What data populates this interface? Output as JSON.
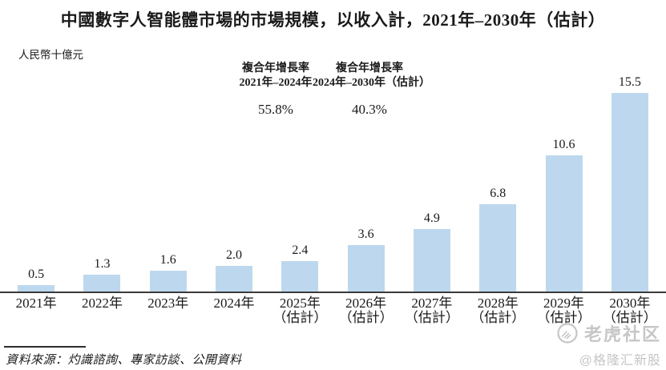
{
  "title": "中國數字人智能體市場的市場規模，以收入計，2021年–2030年（估計）",
  "unit_label": "人民幣十億元",
  "cagr_annotations": [
    {
      "line1": "複合年增長率",
      "line2": "2021年–2024年",
      "value": "55.8%"
    },
    {
      "line1": "複合年增長率",
      "line2": "2024年–2030年（估計）",
      "value": "40.3%"
    }
  ],
  "chart_data": {
    "type": "bar",
    "title": "中國數字人智能體市場的市場規模，以收入計，2021年–2030年（估計）",
    "ylabel": "人民幣十億元",
    "xlabel": "",
    "categories": [
      "2021年",
      "2022年",
      "2023年",
      "2024年",
      "2025年（估計）",
      "2026年（估計）",
      "2027年（估計）",
      "2028年（估計）",
      "2029年（估計）",
      "2030年（估計）"
    ],
    "tick_labels": [
      {
        "line1": "2021年",
        "line2": ""
      },
      {
        "line1": "2022年",
        "line2": ""
      },
      {
        "line1": "2023年",
        "line2": ""
      },
      {
        "line1": "2024年",
        "line2": ""
      },
      {
        "line1": "2025年",
        "line2": "（估計）"
      },
      {
        "line1": "2026年",
        "line2": "（估計）"
      },
      {
        "line1": "2027年",
        "line2": "（估計）"
      },
      {
        "line1": "2028年",
        "line2": "（估計）"
      },
      {
        "line1": "2029年",
        "line2": "（估計）"
      },
      {
        "line1": "2030年",
        "line2": "（估計）"
      }
    ],
    "values": [
      0.5,
      1.3,
      1.6,
      2.0,
      2.4,
      3.6,
      4.9,
      6.8,
      10.6,
      15.5
    ],
    "value_labels": [
      "0.5",
      "1.3",
      "1.6",
      "2.0",
      "2.4",
      "3.6",
      "4.9",
      "6.8",
      "10.6",
      "15.5"
    ],
    "bar_color": "#BDD8EE",
    "ylim": [
      0,
      16
    ],
    "grid": false,
    "legend": "none",
    "annotations": [
      {
        "label": "複合年增長率 2021年–2024年",
        "value": "55.8%"
      },
      {
        "label": "複合年增長率 2024年–2030年（估計）",
        "value": "40.3%"
      }
    ]
  },
  "source": "資料來源：灼識諮詢、專家訪談、公開資料",
  "watermark": {
    "brand": "老虎社区",
    "handle": "@格隆汇新股",
    "icon": "tiger-icon"
  }
}
